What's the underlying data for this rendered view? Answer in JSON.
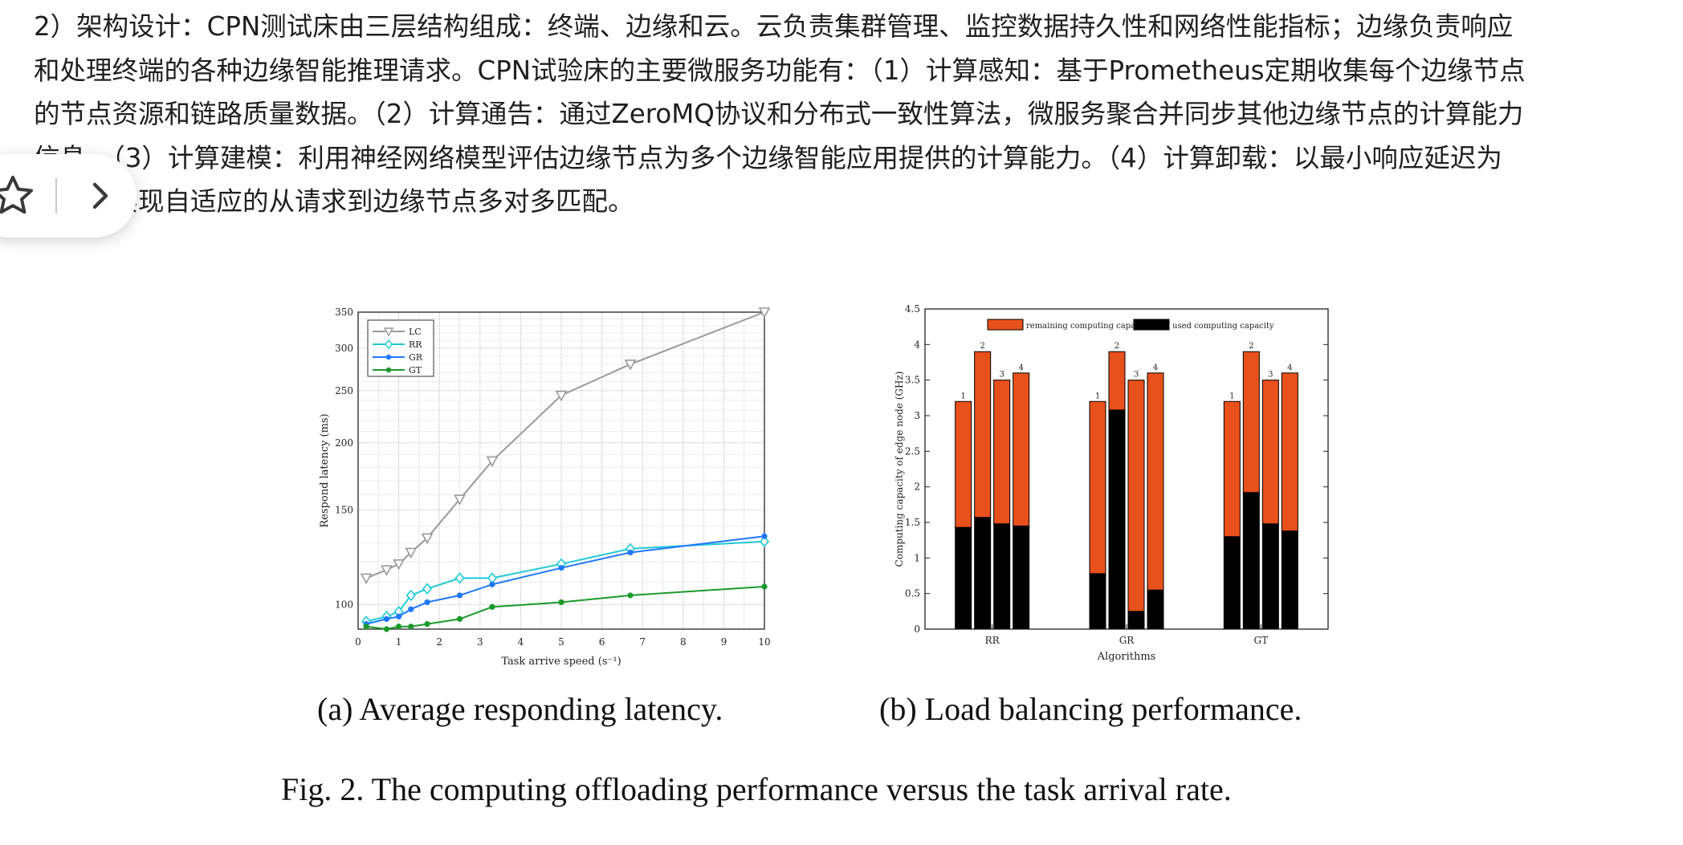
{
  "article": {
    "lines": [
      "2）架构设计：CPN测试床由三层结构组成：终端、边缘和云。云负责集群管理、监控数据持久性和网络性能指标；边缘负责响应",
      "和处理终端的各种边缘智能推理请求。CPN试验床的主要微服务功能有：（1）计算感知：基于Prometheus定期收集每个边缘节点",
      "的节点资源和链路质量数据。（2）计算通告：通过ZeroMQ协议和分布式一致性算法，微服务聚合并同步其他边缘节点的计算能力",
      "信息。（3）计算建模：利用神经网络模型评估边缘节点为多个边缘智能应用提供的计算能力。（4）计算卸载：以最小响应延迟为",
      "目标，实现自适应的从请求到边缘节点多对多匹配。"
    ]
  },
  "floating_toolbar": {
    "star_icon": "star-icon",
    "next_icon": "chevron-right-icon"
  },
  "figure": {
    "caption_a": "(a) Average responding latency.",
    "caption_b": "(b) Load balancing performance.",
    "caption_fig": "Fig. 2.  The computing offloading performance versus the task arrival rate."
  },
  "chart_data": [
    {
      "type": "line",
      "xlabel": "Task arrive speed (s⁻¹)",
      "ylabel": "Respond latency (ms)",
      "xlim": [
        0,
        10
      ],
      "ylim": [
        90,
        350
      ],
      "y_scale": "log",
      "xticks": [
        0,
        1,
        2,
        3,
        4,
        5,
        6,
        7,
        8,
        9,
        10
      ],
      "yticks": [
        100,
        150,
        200,
        250,
        300,
        350
      ],
      "grid": true,
      "legend_position": "top-left",
      "series": [
        {
          "name": "LC",
          "color": "#9a9a9a",
          "marker": "triangle-down",
          "x": [
            0.2,
            0.7,
            1.0,
            1.3,
            1.7,
            2.5,
            3.3,
            5.0,
            6.7,
            10.0
          ],
          "y": [
            112,
            116,
            119,
            125,
            133,
            157,
            185,
            245,
            280,
            350
          ]
        },
        {
          "name": "RR",
          "color": "#1fc9d6",
          "marker": "diamond",
          "x": [
            0.2,
            0.7,
            1.0,
            1.3,
            1.7,
            2.5,
            3.3,
            5.0,
            6.7,
            10.0
          ],
          "y": [
            93,
            95,
            97,
            104,
            107,
            112,
            112,
            119,
            127,
            131
          ]
        },
        {
          "name": "GR",
          "color": "#1e78ff",
          "marker": "dot",
          "x": [
            0.2,
            0.7,
            1.0,
            1.3,
            1.7,
            2.5,
            3.3,
            5.0,
            6.7,
            10.0
          ],
          "y": [
            92,
            94,
            95,
            98,
            101,
            104,
            109,
            117,
            125,
            134
          ]
        },
        {
          "name": "GT",
          "color": "#1a9a2a",
          "marker": "dot",
          "x": [
            0.2,
            0.7,
            1.0,
            1.3,
            1.7,
            2.5,
            3.3,
            5.0,
            6.7,
            10.0
          ],
          "y": [
            91,
            90,
            91,
            91,
            92,
            94,
            99,
            101,
            104,
            108
          ]
        }
      ]
    },
    {
      "type": "bar",
      "stacked": true,
      "xlabel": "Algorithms",
      "ylabel": "Computing capacity of edge node (GHz)",
      "ylim": [
        0,
        4.5
      ],
      "yticks": [
        0,
        0.5,
        1,
        1.5,
        2,
        2.5,
        3,
        3.5,
        4,
        4.5
      ],
      "categories": [
        "RR",
        "GR",
        "GT"
      ],
      "node_labels": [
        "1",
        "2",
        "3",
        "4"
      ],
      "legend_position": "top",
      "series": [
        {
          "name": "used computing capacity",
          "color": "#000000",
          "values": [
            [
              1.43,
              1.57,
              1.48,
              1.45
            ],
            [
              0.78,
              3.08,
              0.25,
              0.55
            ],
            [
              1.3,
              1.92,
              1.48,
              1.38
            ]
          ]
        },
        {
          "name": "remaining computing capacity",
          "color": "#e8501c",
          "values": [
            [
              1.77,
              2.33,
              2.02,
              2.15
            ],
            [
              2.42,
              0.82,
              3.25,
              3.05
            ],
            [
              1.9,
              1.98,
              2.02,
              2.22
            ]
          ]
        }
      ],
      "totals": [
        [
          3.2,
          3.9,
          3.5,
          3.6
        ],
        [
          3.2,
          3.9,
          3.5,
          3.6
        ],
        [
          3.2,
          3.9,
          3.5,
          3.6
        ]
      ]
    }
  ]
}
